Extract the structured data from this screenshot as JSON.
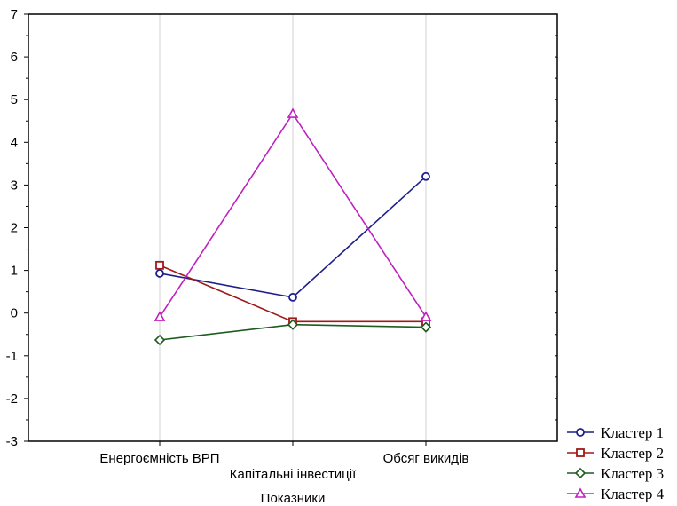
{
  "chart_data": {
    "type": "line",
    "categories": [
      "Енергоємність ВРП",
      "Капітальні інвестиції",
      "Обсяг викидів"
    ],
    "series": [
      {
        "name": "Кластер 1",
        "values": [
          0.93,
          0.37,
          3.2
        ],
        "color": "#1f1f8c",
        "marker": "circle"
      },
      {
        "name": "Кластер 2",
        "values": [
          1.12,
          -0.2,
          -0.2
        ],
        "color": "#a01818",
        "marker": "square"
      },
      {
        "name": "Кластер 3",
        "values": [
          -0.63,
          -0.27,
          -0.33
        ],
        "color": "#1e5c1e",
        "marker": "diamond"
      },
      {
        "name": "Кластер 4",
        "values": [
          -0.09,
          4.67,
          -0.09
        ],
        "color": "#c020c0",
        "marker": "triangle"
      }
    ],
    "xlabel": "Показники",
    "ylabel": "",
    "ylim": [
      -3,
      7
    ],
    "yticks": [
      -3,
      -2,
      -1,
      0,
      1,
      2,
      3,
      4,
      5,
      6,
      7
    ],
    "grid": "vertical-at-categories",
    "legend_position": "bottom-right"
  }
}
